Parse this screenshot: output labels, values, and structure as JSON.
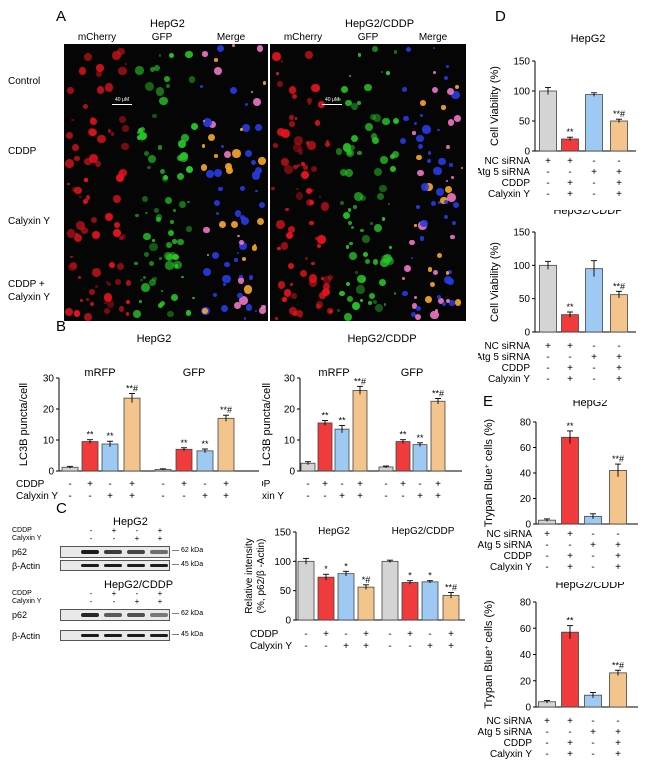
{
  "panel_labels": {
    "a": "A",
    "b": "B",
    "c": "C",
    "d": "D",
    "e": "E"
  },
  "panel_a": {
    "group1_title": "HepG2",
    "group2_title": "HepG2/CDDP",
    "channels": [
      "mCherry",
      "GFP",
      "Merge"
    ],
    "rows": [
      "Control",
      "CDDP",
      "Calyxin Y",
      "CDDP +\nCalyxin Y"
    ],
    "scale": "40 μM"
  },
  "panel_c_blot": {
    "group1_title": "HepG2",
    "group2_title": "HepG2/CDDP",
    "treat_labels": [
      "CDDP",
      "Calyxin Y"
    ],
    "signs": [
      [
        "-",
        "+",
        "-",
        "+"
      ],
      [
        "-",
        "-",
        "+",
        "+"
      ]
    ],
    "proteins": [
      "p62",
      "β-Actin"
    ],
    "sizes": [
      "62 kDa",
      "45 kDa"
    ]
  },
  "colors": {
    "ctrl": "#d4d4d4",
    "cddp": "#ef3b3b",
    "caly": "#9ec9f3",
    "combo": "#f4c48d"
  },
  "chart_data": [
    {
      "id": "b1",
      "type": "bar",
      "title": "HepG2",
      "ylabel": "LC3B puncta/cell",
      "ylim": [
        0,
        30
      ],
      "yticks": [
        0,
        10,
        20,
        30
      ],
      "group_labels": [
        "mRFP",
        "GFP"
      ],
      "row_labels": [
        "CDDP",
        "Calyxin Y"
      ],
      "signs": [
        [
          "-",
          "+",
          "-",
          "+",
          "-",
          "+",
          "-",
          "+"
        ],
        [
          "-",
          "-",
          "+",
          "+",
          "-",
          "-",
          "+",
          "+"
        ]
      ],
      "values": [
        1.2,
        9.5,
        8.7,
        23.5,
        0.5,
        7,
        6.5,
        17
      ],
      "errors": [
        0.3,
        0.6,
        0.9,
        1.5,
        0.2,
        0.5,
        0.6,
        1.0
      ],
      "annotations": [
        "",
        "**",
        "**",
        "**#",
        "",
        "**",
        "**",
        "**#"
      ],
      "colors": [
        "ctrl",
        "cddp",
        "caly",
        "combo",
        "ctrl",
        "cddp",
        "caly",
        "combo"
      ]
    },
    {
      "id": "b2",
      "type": "bar",
      "title": "HepG2/CDDP",
      "ylabel": "LC3B puncta/cell",
      "ylim": [
        0,
        30
      ],
      "yticks": [
        0,
        10,
        20,
        30
      ],
      "group_labels": [
        "mRFP",
        "GFP"
      ],
      "row_labels": [
        "CDDP",
        "Calyxin Y"
      ],
      "signs": [
        [
          "-",
          "+",
          "-",
          "+",
          "-",
          "+",
          "-",
          "+"
        ],
        [
          "-",
          "-",
          "+",
          "+",
          "-",
          "-",
          "+",
          "+"
        ]
      ],
      "values": [
        2.5,
        15.5,
        13.5,
        26,
        1.3,
        9.5,
        8.5,
        22.5
      ],
      "errors": [
        0.5,
        0.8,
        1.2,
        1.3,
        0.3,
        0.6,
        0.6,
        0.9
      ],
      "annotations": [
        "",
        "**",
        "**",
        "**#",
        "",
        "**",
        "**",
        "**#"
      ],
      "colors": [
        "ctrl",
        "cddp",
        "caly",
        "combo",
        "ctrl",
        "cddp",
        "caly",
        "combo"
      ]
    },
    {
      "id": "c",
      "type": "bar",
      "title": "",
      "ylabel": "Relative intensity\n(%, p62/β -Actin)",
      "ylim": [
        0,
        150
      ],
      "yticks": [
        0,
        50,
        100,
        150
      ],
      "group_labels": [
        "HepG2",
        "HepG2/CDDP"
      ],
      "row_labels": [
        "CDDP",
        "Calyxin Y"
      ],
      "signs": [
        [
          "-",
          "+",
          "-",
          "+",
          "-",
          "+",
          "-",
          "+"
        ],
        [
          "-",
          "-",
          "+",
          "+",
          "-",
          "-",
          "+",
          "+"
        ]
      ],
      "values": [
        100,
        73,
        79,
        56,
        100,
        64,
        65,
        42
      ],
      "errors": [
        5,
        5,
        4,
        4,
        2,
        3,
        2,
        5
      ],
      "annotations": [
        "",
        "*",
        "*",
        "*#",
        "",
        "*",
        "*",
        "**#"
      ],
      "colors": [
        "ctrl",
        "cddp",
        "caly",
        "combo",
        "ctrl",
        "cddp",
        "caly",
        "combo"
      ]
    },
    {
      "id": "d1",
      "type": "bar",
      "title": "HepG2",
      "ylabel": "Cell Viability (%)",
      "ylim": [
        0,
        150
      ],
      "yticks": [
        0,
        50,
        100,
        150
      ],
      "row_labels": [
        "NC siRNA",
        "Atg 5 siRNA",
        "CDDP",
        "Calyxin Y"
      ],
      "signs": [
        [
          "+",
          "+",
          "-",
          "-"
        ],
        [
          "-",
          "-",
          "+",
          "+"
        ],
        [
          "-",
          "+",
          "-",
          "+"
        ],
        [
          "-",
          "+",
          "-",
          "+"
        ]
      ],
      "values": [
        100,
        20,
        94,
        50
      ],
      "errors": [
        6,
        3,
        3,
        3
      ],
      "annotations": [
        "",
        "**",
        "",
        "**#"
      ],
      "colors": [
        "ctrl",
        "cddp",
        "caly",
        "combo"
      ]
    },
    {
      "id": "d2",
      "type": "bar",
      "title": "HepG2/CDDP",
      "ylabel": "Cell Viability (%)",
      "ylim": [
        0,
        150
      ],
      "yticks": [
        0,
        50,
        100,
        150
      ],
      "row_labels": [
        "NC siRNA",
        "Atg 5 siRNA",
        "CDDP",
        "Calyxin Y"
      ],
      "signs": [
        [
          "+",
          "+",
          "-",
          "-"
        ],
        [
          "-",
          "-",
          "+",
          "+"
        ],
        [
          "-",
          "+",
          "-",
          "+"
        ],
        [
          "-",
          "+",
          "-",
          "+"
        ]
      ],
      "values": [
        100,
        26,
        95,
        56
      ],
      "errors": [
        6,
        4,
        12,
        5
      ],
      "annotations": [
        "",
        "**",
        "",
        "**#"
      ],
      "colors": [
        "ctrl",
        "cddp",
        "caly",
        "combo"
      ]
    },
    {
      "id": "e1",
      "type": "bar",
      "title": "HepG2",
      "ylabel": "Trypan Blue+ cells (%)",
      "ylim": [
        0,
        80
      ],
      "yticks": [
        0,
        20,
        40,
        60,
        80
      ],
      "row_labels": [
        "NC siRNA",
        "Atg 5 siRNA",
        "CDDP",
        "Calyxin Y"
      ],
      "signs": [
        [
          "+",
          "+",
          "-",
          "-"
        ],
        [
          "-",
          "-",
          "+",
          "+"
        ],
        [
          "-",
          "+",
          "-",
          "+"
        ],
        [
          "-",
          "+",
          "-",
          "+"
        ]
      ],
      "values": [
        3,
        68,
        6,
        42
      ],
      "errors": [
        1,
        5,
        2,
        5
      ],
      "annotations": [
        "",
        "**",
        "",
        "**#"
      ],
      "colors": [
        "ctrl",
        "cddp",
        "caly",
        "combo"
      ]
    },
    {
      "id": "e2",
      "type": "bar",
      "title": "HepG2/CDDP",
      "ylabel": "Trypan Blue+ cells (%)",
      "ylim": [
        0,
        80
      ],
      "yticks": [
        0,
        20,
        40,
        60,
        80
      ],
      "row_labels": [
        "NC siRNA",
        "Atg 5 siRNA",
        "CDDP",
        "Calyxin Y"
      ],
      "signs": [
        [
          "+",
          "+",
          "-",
          "-"
        ],
        [
          "-",
          "-",
          "+",
          "+"
        ],
        [
          "-",
          "+",
          "-",
          "+"
        ],
        [
          "-",
          "+",
          "-",
          "+"
        ]
      ],
      "values": [
        4,
        57,
        9,
        26
      ],
      "errors": [
        1,
        5,
        2,
        2
      ],
      "annotations": [
        "",
        "**",
        "",
        "**#"
      ],
      "colors": [
        "ctrl",
        "cddp",
        "caly",
        "combo"
      ]
    }
  ]
}
